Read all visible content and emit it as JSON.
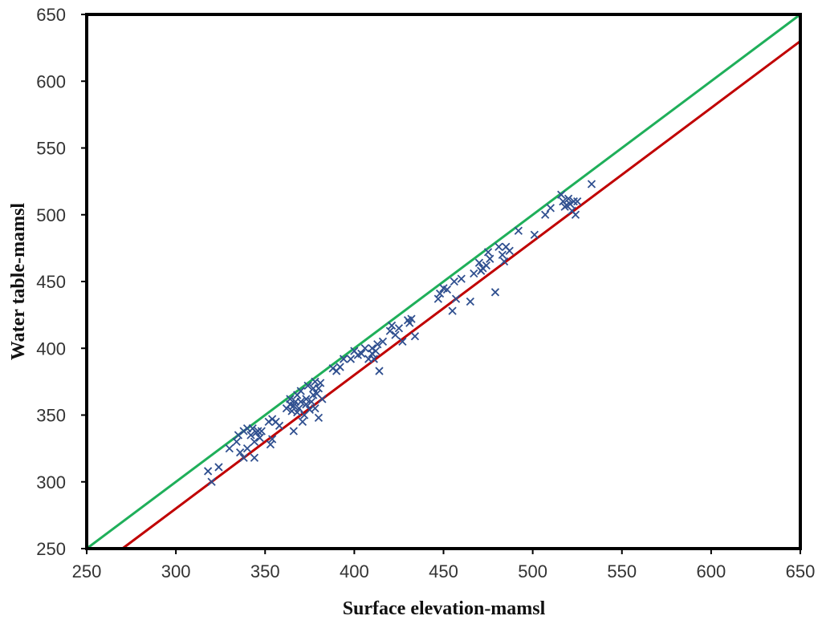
{
  "chart_data": {
    "type": "scatter",
    "title": "",
    "xlabel": "Surface elevation-mamsl",
    "ylabel": "Water table-mamsl",
    "xlim": [
      250,
      650
    ],
    "ylim": [
      250,
      650
    ],
    "x_ticks": [
      250,
      300,
      350,
      400,
      450,
      500,
      550,
      600,
      650
    ],
    "y_ticks": [
      250,
      300,
      350,
      400,
      450,
      500,
      550,
      600,
      650
    ],
    "x_tick_labels": [
      "250",
      "300",
      "350",
      "400",
      "450",
      "500",
      "550",
      "600",
      "650"
    ],
    "y_tick_labels": [
      "250",
      "300",
      "350",
      "400",
      "450",
      "500",
      "550",
      "600",
      "650"
    ],
    "grid": false,
    "legend": "none",
    "colors": {
      "points": "#2F4F8F",
      "line_green": "#1FAF5A",
      "line_red": "#C00000",
      "frame": "#000000"
    },
    "marker": "x",
    "lines": [
      {
        "x": [
          250,
          650
        ],
        "y": [
          250,
          650
        ]
      },
      {
        "x": [
          270,
          650
        ],
        "y": [
          250,
          630
        ]
      }
    ],
    "series": [
      {
        "x": [
          318,
          320,
          324,
          330,
          334,
          335,
          336,
          338,
          338,
          340,
          340,
          342,
          343,
          344,
          344,
          345,
          346,
          347,
          348,
          352,
          353,
          354,
          354,
          356,
          358,
          362,
          364,
          364,
          365,
          366,
          366,
          367,
          368,
          368,
          369,
          370,
          370,
          371,
          372,
          373,
          373,
          374,
          375,
          376,
          377,
          377,
          378,
          378,
          379,
          380,
          380,
          381,
          382,
          388,
          390,
          392,
          394,
          398,
          400,
          402,
          404,
          406,
          408,
          410,
          410,
          411,
          412,
          413,
          414,
          416,
          420,
          421,
          423,
          425,
          427,
          430,
          431,
          432,
          434,
          447,
          448,
          450,
          452,
          455,
          456,
          457,
          460,
          465,
          467,
          470,
          471,
          472,
          474,
          475,
          476,
          479,
          481,
          483,
          484,
          485,
          487,
          492,
          501,
          507,
          510,
          516,
          517,
          518,
          519,
          520,
          521,
          522,
          523,
          524,
          525,
          533
        ],
        "y": [
          308,
          300,
          311,
          325,
          330,
          335,
          322,
          338,
          318,
          340,
          325,
          335,
          340,
          318,
          330,
          337,
          338,
          333,
          338,
          345,
          328,
          332,
          347,
          345,
          342,
          355,
          358,
          362,
          353,
          338,
          357,
          360,
          352,
          365,
          355,
          368,
          360,
          345,
          350,
          362,
          358,
          372,
          354,
          360,
          370,
          365,
          375,
          355,
          366,
          370,
          348,
          374,
          362,
          385,
          383,
          386,
          392,
          392,
          398,
          395,
          396,
          400,
          392,
          400,
          396,
          392,
          398,
          403,
          383,
          405,
          413,
          417,
          410,
          415,
          405,
          421,
          419,
          422,
          409,
          437,
          441,
          445,
          444,
          428,
          450,
          437,
          452,
          435,
          456,
          464,
          458,
          460,
          462,
          472,
          467,
          442,
          476,
          470,
          465,
          476,
          473,
          488,
          485,
          500,
          505,
          515,
          510,
          506,
          507,
          512,
          508,
          503,
          510,
          500,
          510,
          523
        ]
      }
    ]
  }
}
